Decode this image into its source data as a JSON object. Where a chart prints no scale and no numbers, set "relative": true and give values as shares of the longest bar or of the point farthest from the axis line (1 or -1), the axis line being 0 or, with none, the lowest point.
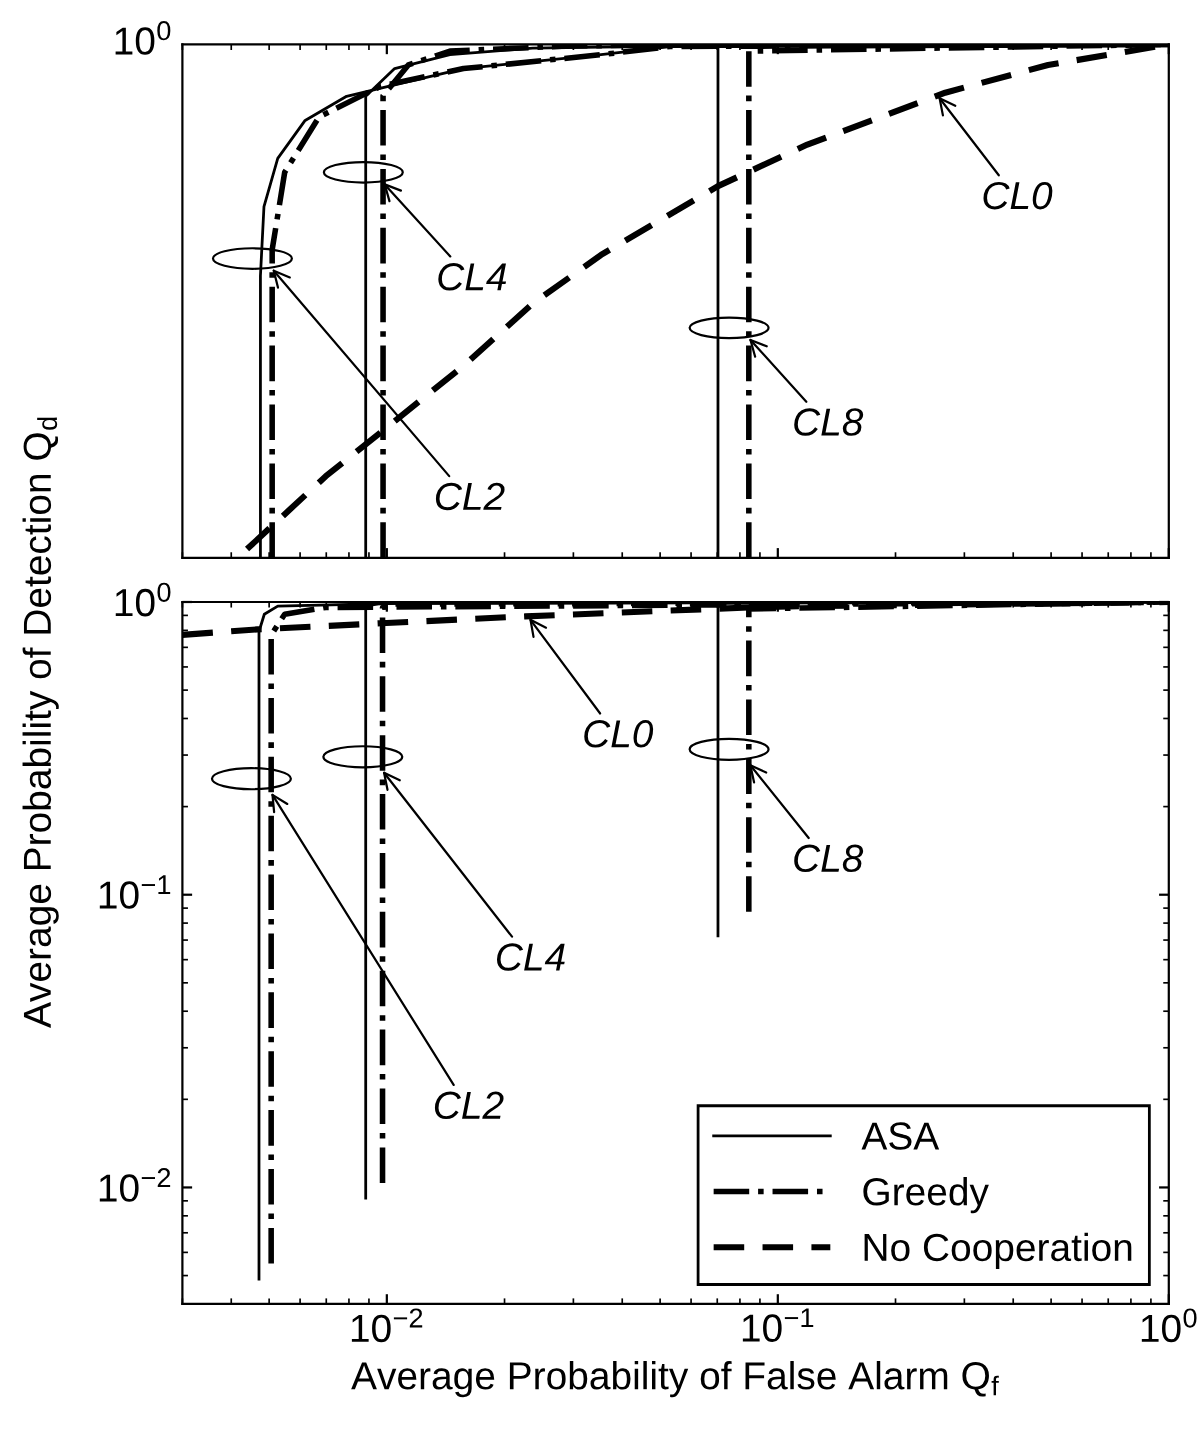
{
  "chart_data": [
    {
      "type": "line",
      "relative": true,
      "xlim": [
        0.003,
        1
      ],
      "xticks": [
        0.01,
        0.1,
        1
      ],
      "log": "x",
      "tick_labels": false,
      "grid": false,
      "legend": false,
      "annotations": [
        "10$^{0}$",
        {
          "text": "CL0",
          "x": 0.257,
          "y": 0.899
        },
        {
          "text": "CL4",
          "x": 0.00978,
          "y": 0.731
        },
        {
          "text": "CL2",
          "x": 0.00509,
          "y": 0.563
        },
        {
          "text": "CL8",
          "x": 0.0843,
          "y": 0.428
        }
      ],
      "series": [
        {
          "color": "#000000",
          "line_style": "solid",
          "x": [
            0.00475,
            0.00475,
            0.00485,
            0.00526,
            0.00618,
            0.00789,
            0.00966,
            0.0157,
            0.0353,
            0.053,
            1
          ],
          "values": [
            0,
            0.549,
            0.684,
            0.778,
            0.852,
            0.899,
            0.915,
            0.953,
            0.98,
            0.996,
            1
          ]
        },
        {
          "color": "#000000",
          "line_style": "solid",
          "x": [
            0.00883,
            0.00883,
            0.00883,
            0.01047,
            0.0145,
            0.0236,
            0.053,
            1
          ],
          "values": [
            0,
            0.75,
            0.899,
            0.953,
            0.98,
            0.993,
            0.997,
            1
          ]
        },
        {
          "color": "#000000",
          "line_style": "solid",
          "x": [
            0.0703,
            0.0703,
            1
          ],
          "values": [
            0,
            0.996,
            1
          ]
        },
        {
          "color": "#000000",
          "line_style": "dashdot",
          "x": [
            0.00509,
            0.00509,
            0.00548,
            0.00671,
            0.00966,
            0.0157,
            0.0353,
            0.053,
            1
          ],
          "values": [
            0,
            0.6,
            0.751,
            0.859,
            0.919,
            0.953,
            0.98,
            0.996,
            1
          ]
        },
        {
          "color": "#000000",
          "line_style": "dashdot",
          "x": [
            0.00978,
            0.00978,
            0.00978,
            0.01135,
            0.0145,
            0.0288,
            0.053,
            1
          ],
          "values": [
            0,
            0.75,
            0.9,
            0.96,
            0.987,
            0.997,
            0.999,
            1
          ]
        },
        {
          "color": "#000000",
          "line_style": "dashdot",
          "x": [
            0.0843,
            0.0843,
            1
          ],
          "values": [
            0,
            0.987,
            1
          ]
        },
        {
          "color": "#000000",
          "line_style": "dashed",
          "x": [
            0.00439,
            0.00698,
            0.01047,
            0.0157,
            0.0236,
            0.0353,
            0.0703,
            0.119,
            0.268,
            0.491,
            1
          ],
          "values": [
            0.017,
            0.159,
            0.266,
            0.374,
            0.495,
            0.59,
            0.724,
            0.805,
            0.906,
            0.96,
            1
          ]
        }
      ]
    },
    {
      "type": "line",
      "xlim": [
        0.003,
        1
      ],
      "ylim": [
        0.004,
        1
      ],
      "log": "xy",
      "grid": false,
      "legend": "lower right",
      "xticks": [
        {
          "value": 0.01,
          "label": "10$^{−2}$"
        },
        {
          "value": 0.1,
          "label": "10$^{−1}$"
        },
        {
          "value": 1,
          "label": "10$^{0}$"
        }
      ],
      "yticks": [
        {
          "value": 0.01,
          "label": "10$^{−2}$"
        },
        {
          "value": 0.1,
          "label": "10$^{−1}$"
        },
        {
          "value": 1,
          "label": "10$^{0}$"
        }
      ],
      "xlabel": "Average Probability of False Alarm Q$_{f}$",
      "ylabel": "Average Probability of Detection Q$_{d}$",
      "annotations": [
        {
          "text": "CL0",
          "x": 0.0231,
          "y": 0.883
        },
        {
          "text": "CL4",
          "x": 0.00975,
          "y": 0.265
        },
        {
          "text": "CL2",
          "x": 0.00506,
          "y": 0.223
        },
        {
          "text": "CL8",
          "x": 0.0843,
          "y": 0.281
        }
      ],
      "series": [
        {
          "name": "ASA",
          "color": "#000000",
          "line_style": "solid",
          "x": [
            0.00471,
            0.00471,
            0.00486,
            0.00526,
            0.0105,
            1
          ],
          "values": [
            0.00486,
            0.793,
            0.908,
            0.968,
            0.99,
            1
          ]
        },
        {
          "color": "#000000",
          "line_style": "solid",
          "x": [
            0.00883,
            0.00883,
            0.0095,
            0.0105,
            1
          ],
          "values": [
            0.0092,
            0.968,
            0.985,
            0.99,
            1
          ]
        },
        {
          "color": "#000000",
          "line_style": "solid",
          "x": [
            0.0703,
            0.0703,
            1
          ],
          "values": [
            0.0724,
            0.99,
            1
          ]
        },
        {
          "name": "Greedy",
          "color": "#000000",
          "line_style": "dashdot",
          "x": [
            0.00506,
            0.00506,
            0.00548,
            0.00698,
            1
          ],
          "values": [
            0.0055,
            0.772,
            0.908,
            0.958,
            1
          ]
        },
        {
          "color": "#000000",
          "line_style": "dashdot",
          "x": [
            0.00975,
            0.00975,
            0.01047,
            1
          ],
          "values": [
            0.01036,
            0.958,
            0.984,
            1
          ]
        },
        {
          "color": "#000000",
          "line_style": "dashdot",
          "x": [
            0.0843,
            0.0843,
            1
          ],
          "values": [
            0.0875,
            0.947,
            1
          ]
        },
        {
          "name": "No Cooperation",
          "color": "#000000",
          "line_style": "dashed",
          "x": [
            0.003,
            0.00466,
            0.00966,
            0.0226,
            0.0843,
            0.119,
            1
          ],
          "values": [
            0.772,
            0.806,
            0.846,
            0.893,
            0.958,
            0.968,
            1
          ]
        }
      ]
    }
  ]
}
